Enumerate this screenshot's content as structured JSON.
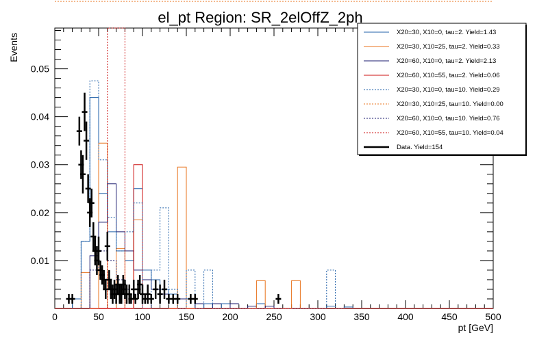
{
  "chart_data": {
    "type": "histogram",
    "title": "el_pt Region: SR_2elOffZ_2ph",
    "xlabel": "pt [GeV]",
    "ylabel": "Events",
    "xlim": [
      0,
      500
    ],
    "ylim": [
      0,
      0.0585
    ],
    "x_ticks": [
      0,
      50,
      100,
      150,
      200,
      250,
      300,
      350,
      400,
      450,
      500
    ],
    "y_ticks": [
      0.01,
      0.02,
      0.03,
      0.04,
      0.05
    ],
    "bin_width": 10,
    "legend_position": "top-right",
    "series": [
      {
        "name": "X20=30, X10=0, tau=2. Yield=1.43",
        "color": "#1f5fa8",
        "style": "solid",
        "bins": [
          [
            20,
            0.002
          ],
          [
            30,
            0.014
          ],
          [
            40,
            0.044
          ],
          [
            50,
            0.024
          ],
          [
            60,
            0.016
          ],
          [
            70,
            0.012
          ],
          [
            80,
            0.01
          ],
          [
            90,
            0.025
          ],
          [
            100,
            0.008
          ],
          [
            110,
            0.006
          ],
          [
            120,
            0.004
          ],
          [
            130,
            0.003
          ],
          [
            150,
            0.002
          ],
          [
            170,
            0.001
          ],
          [
            190,
            0.001
          ],
          [
            230,
            0.001
          ],
          [
            310,
            0.0005
          ],
          [
            330,
            0.0003
          ]
        ]
      },
      {
        "name": "X20=30, X10=25, tau=2. Yield=0.33",
        "color": "#e8731d",
        "style": "solid",
        "bins": [
          [
            30,
            0.0075
          ],
          [
            40,
            0.0
          ],
          [
            50,
            0.0345
          ],
          [
            60,
            0.0
          ],
          [
            70,
            0.0125
          ],
          [
            80,
            0.0
          ],
          [
            90,
            0.0185
          ],
          [
            100,
            0.0
          ],
          [
            130,
            0.0
          ],
          [
            140,
            0.0295
          ],
          [
            150,
            0.0
          ],
          [
            220,
            0.0
          ],
          [
            230,
            0.0058
          ],
          [
            240,
            0.0
          ],
          [
            260,
            0.0
          ],
          [
            270,
            0.0058
          ]
        ]
      },
      {
        "name": "X20=60, X10=0, tau=2. Yield=2.13",
        "color": "#1a1a6e",
        "style": "solid",
        "bins": [
          [
            40,
            0.011
          ],
          [
            50,
            0.018
          ],
          [
            60,
            0.026
          ],
          [
            70,
            0.016
          ],
          [
            80,
            0.012
          ],
          [
            90,
            0.008
          ],
          [
            100,
            0.006
          ],
          [
            110,
            0.004
          ],
          [
            120,
            0.003
          ],
          [
            130,
            0.002
          ],
          [
            140,
            0.002
          ],
          [
            160,
            0.001
          ],
          [
            180,
            0.001
          ],
          [
            200,
            0.001
          ],
          [
            220,
            0.0005
          ],
          [
            240,
            0.0005
          ]
        ]
      },
      {
        "name": "X20=60, X10=55, tau=2. Yield=0.06",
        "color": "#cc1111",
        "style": "solid",
        "bins": [
          [
            50,
            0.0
          ],
          [
            60,
            0.0
          ],
          [
            70,
            0.0
          ],
          [
            80,
            0.0
          ],
          [
            90,
            0.03
          ],
          [
            100,
            0.0
          ]
        ]
      },
      {
        "name": "X20=30, X10=0, tau=10. Yield=0.29",
        "color": "#1f5fa8",
        "style": "dotted",
        "bins": [
          [
            30,
            0.014
          ],
          [
            40,
            0.0475
          ],
          [
            50,
            0.031
          ],
          [
            60,
            0.019
          ],
          [
            70,
            0.012
          ],
          [
            80,
            0.016
          ],
          [
            90,
            0.022
          ],
          [
            100,
            0.0
          ],
          [
            110,
            0.008
          ],
          [
            120,
            0.021
          ],
          [
            130,
            0.004
          ],
          [
            140,
            0.0
          ],
          [
            150,
            0.008
          ],
          [
            160,
            0.0
          ],
          [
            170,
            0.008
          ],
          [
            180,
            0.0
          ],
          [
            190,
            0.0
          ],
          [
            200,
            0.0
          ],
          [
            210,
            0.0
          ],
          [
            220,
            0.0
          ],
          [
            230,
            0.0
          ],
          [
            240,
            0.0
          ],
          [
            250,
            0.0
          ],
          [
            260,
            0.0
          ],
          [
            270,
            0.0
          ],
          [
            280,
            0.0
          ],
          [
            290,
            0.0
          ],
          [
            300,
            0.0
          ],
          [
            310,
            0.008
          ],
          [
            320,
            0.0
          ]
        ]
      },
      {
        "name": "X20=30, X10=25, tau=10. Yield=0.00",
        "color": "#e8731d",
        "style": "dotted",
        "bins": []
      },
      {
        "name": "X20=60, X10=0, tau=10. Yield=0.76",
        "color": "#1a1a6e",
        "style": "dotted",
        "bins": [
          [
            40,
            0.008
          ],
          [
            50,
            0.012
          ],
          [
            60,
            0.01
          ],
          [
            70,
            0.006
          ],
          [
            80,
            0.004
          ],
          [
            90,
            0.003
          ],
          [
            100,
            0.002
          ]
        ]
      },
      {
        "name": "X20=60, X10=55, tau=10. Yield=0.04",
        "color": "#cc1111",
        "style": "dotted",
        "bins": [
          [
            60,
            0.0585
          ],
          [
            70,
            0.0585
          ]
        ]
      },
      {
        "name": "Data. Yield=154",
        "color": "#000000",
        "style": "points",
        "points": [
          [
            16,
            0.002,
            0.001
          ],
          [
            20,
            0.002,
            0.001
          ],
          [
            28,
            0.037,
            0.003
          ],
          [
            30,
            0.03,
            0.003
          ],
          [
            32,
            0.028,
            0.004
          ],
          [
            34,
            0.041,
            0.004
          ],
          [
            36,
            0.035,
            0.004
          ],
          [
            38,
            0.025,
            0.003
          ],
          [
            40,
            0.02,
            0.003
          ],
          [
            42,
            0.022,
            0.003
          ],
          [
            44,
            0.015,
            0.003
          ],
          [
            46,
            0.012,
            0.003
          ],
          [
            48,
            0.01,
            0.003
          ],
          [
            50,
            0.012,
            0.003
          ],
          [
            52,
            0.008,
            0.002
          ],
          [
            54,
            0.007,
            0.002
          ],
          [
            56,
            0.006,
            0.002
          ],
          [
            58,
            0.004,
            0.002
          ],
          [
            60,
            0.013,
            0.003
          ],
          [
            62,
            0.006,
            0.002
          ],
          [
            64,
            0.004,
            0.002
          ],
          [
            66,
            0.003,
            0.002
          ],
          [
            68,
            0.004,
            0.002
          ],
          [
            70,
            0.003,
            0.002
          ],
          [
            72,
            0.005,
            0.002
          ],
          [
            74,
            0.003,
            0.002
          ],
          [
            76,
            0.003,
            0.002
          ],
          [
            78,
            0.005,
            0.002
          ],
          [
            80,
            0.004,
            0.002
          ],
          [
            82,
            0.003,
            0.002
          ],
          [
            85,
            0.003,
            0.002
          ],
          [
            87,
            0.002,
            0.001
          ],
          [
            90,
            0.004,
            0.002
          ],
          [
            92,
            0.002,
            0.001
          ],
          [
            95,
            0.004,
            0.002
          ],
          [
            97,
            0.005,
            0.002
          ],
          [
            100,
            0.003,
            0.002
          ],
          [
            103,
            0.002,
            0.001
          ],
          [
            106,
            0.003,
            0.002
          ],
          [
            110,
            0.002,
            0.001
          ],
          [
            115,
            0.004,
            0.002
          ],
          [
            120,
            0.003,
            0.002
          ],
          [
            125,
            0.004,
            0.002
          ],
          [
            130,
            0.002,
            0.001
          ],
          [
            135,
            0.002,
            0.001
          ],
          [
            140,
            0.002,
            0.001
          ],
          [
            155,
            0.002,
            0.001
          ],
          [
            160,
            0.002,
            0.001
          ],
          [
            255,
            0.002,
            0.001
          ]
        ]
      }
    ]
  }
}
